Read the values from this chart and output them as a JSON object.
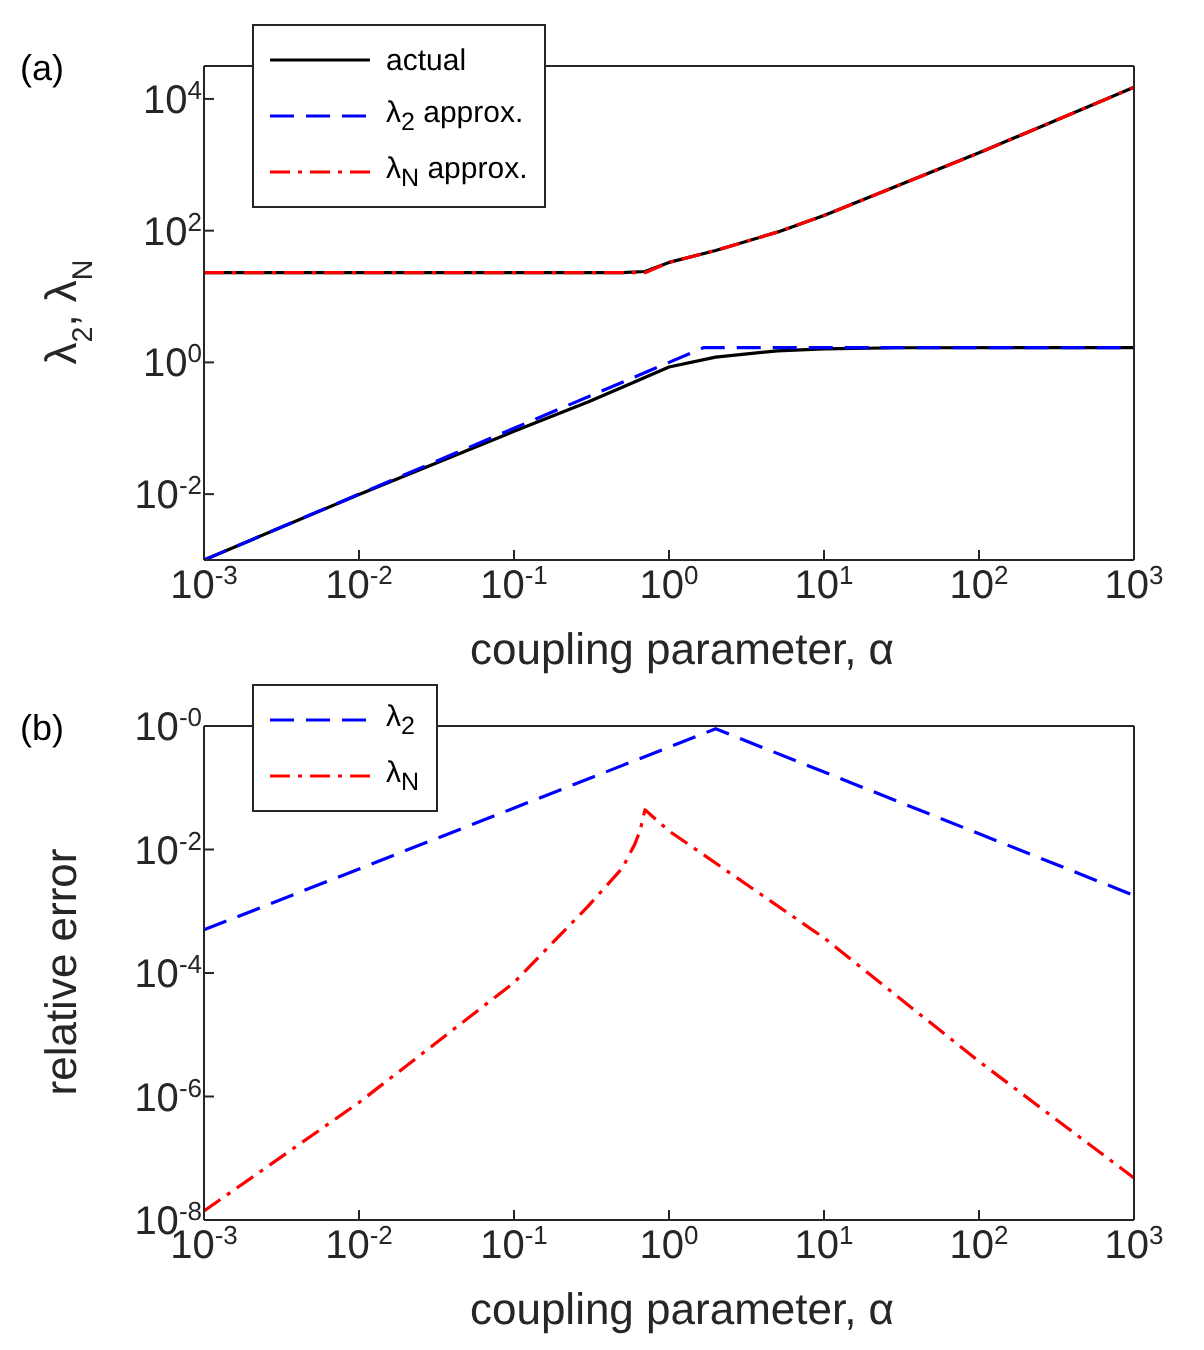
{
  "chart_data": [
    {
      "type": "line",
      "xlabel": "coupling parameter,  α",
      "ylabel": "λ$_{2}$, λ$_{N}$",
      "annotations": [
        "(a)"
      ],
      "log": "xy",
      "grid": false,
      "legend": "top left",
      "xlim": [
        0.001,
        1000
      ],
      "ylim": [
        0.001,
        31623
      ],
      "xticks": [
        {
          "value": 0.001,
          "label": "10$^{-3}$"
        },
        {
          "value": 0.01,
          "label": "10$^{-2}$"
        },
        {
          "value": 0.1,
          "label": "10$^{-1}$"
        },
        {
          "value": 1,
          "label": "10$^{0}$"
        },
        {
          "value": 10,
          "label": "10$^{1}$"
        },
        {
          "value": 100,
          "label": "10$^{2}$"
        },
        {
          "value": 1000,
          "label": "10$^{3}$"
        }
      ],
      "yticks": [
        {
          "value": 0.01,
          "label": "10$^{-2}$"
        },
        {
          "value": 1,
          "label": "10$^{0}$"
        },
        {
          "value": 100,
          "label": "10$^{2}$"
        },
        {
          "value": 10000,
          "label": "10$^{4}$"
        }
      ],
      "series": [
        {
          "name": "actual",
          "color": "#000000",
          "line_style": "solid",
          "x": [
            0.001,
            0.01,
            0.1,
            0.3,
            0.5,
            1,
            2,
            5,
            10,
            30,
            1000
          ],
          "values": [
            0.001,
            0.0099,
            0.09,
            0.25,
            0.42,
            0.85,
            1.2,
            1.5,
            1.6,
            1.67,
            1.68
          ]
        },
        {
          "color": "#000000",
          "line_style": "solid",
          "x": [
            0.001,
            0.5,
            0.7,
            1,
            2,
            5,
            10,
            100,
            1000
          ],
          "values": [
            23,
            23,
            24,
            33,
            50,
            95,
            170,
            1520,
            15000
          ]
        },
        {
          "name": "λ$_{2}$ approx.",
          "color": "#0000ff",
          "line_style": "dashed",
          "x": [
            0.001,
            1.68,
            1000
          ],
          "values": [
            0.001,
            1.68,
            1.68
          ]
        },
        {
          "name": "λ$_{N}$ approx.",
          "color": "#ff0000",
          "line_style": "dashdot",
          "x": [
            0.001,
            0.7,
            1,
            2,
            5,
            10,
            100,
            1000
          ],
          "values": [
            23,
            23,
            33,
            50,
            95,
            170,
            1520,
            15000
          ]
        }
      ]
    },
    {
      "type": "line",
      "xlabel": "coupling parameter,  α",
      "ylabel": "relative error",
      "annotations": [
        "(b)"
      ],
      "log": "xy",
      "grid": false,
      "legend": "top left",
      "xlim": [
        0.001,
        1000
      ],
      "ylim": [
        1e-08,
        1
      ],
      "xticks": [
        {
          "value": 0.001,
          "label": "10$^{-3}$"
        },
        {
          "value": 0.01,
          "label": "10$^{-2}$"
        },
        {
          "value": 0.1,
          "label": "10$^{-1}$"
        },
        {
          "value": 1,
          "label": "10$^{0}$"
        },
        {
          "value": 10,
          "label": "10$^{1}$"
        },
        {
          "value": 100,
          "label": "10$^{2}$"
        },
        {
          "value": 1000,
          "label": "10$^{3}$"
        }
      ],
      "yticks": [
        {
          "value": 1e-08,
          "label": "10$^{-8}$"
        },
        {
          "value": 1e-06,
          "label": "10$^{-6}$"
        },
        {
          "value": 0.0001,
          "label": "10$^{-4}$"
        },
        {
          "value": 0.01,
          "label": "10$^{-2}$"
        },
        {
          "value": 1,
          "label": "10$^{-0}$"
        }
      ],
      "series": [
        {
          "name": "λ$_{2}$",
          "color": "#0000ff",
          "line_style": "dashed",
          "x": [
            0.001,
            2,
            1000
          ],
          "values": [
            0.0005,
            0.9,
            0.0018
          ]
        },
        {
          "name": "λ$_{N}$",
          "color": "#ff0000",
          "line_style": "dashdot",
          "x": [
            0.001,
            0.01,
            0.1,
            0.3,
            0.5,
            0.6,
            0.65,
            0.7,
            1,
            10,
            100,
            1000
          ],
          "values": [
            1.4e-08,
            8e-07,
            7e-05,
            0.0012,
            0.005,
            0.012,
            0.02,
            0.044,
            0.02,
            0.00037,
            3.7e-06,
            4.8e-08
          ]
        }
      ]
    }
  ]
}
